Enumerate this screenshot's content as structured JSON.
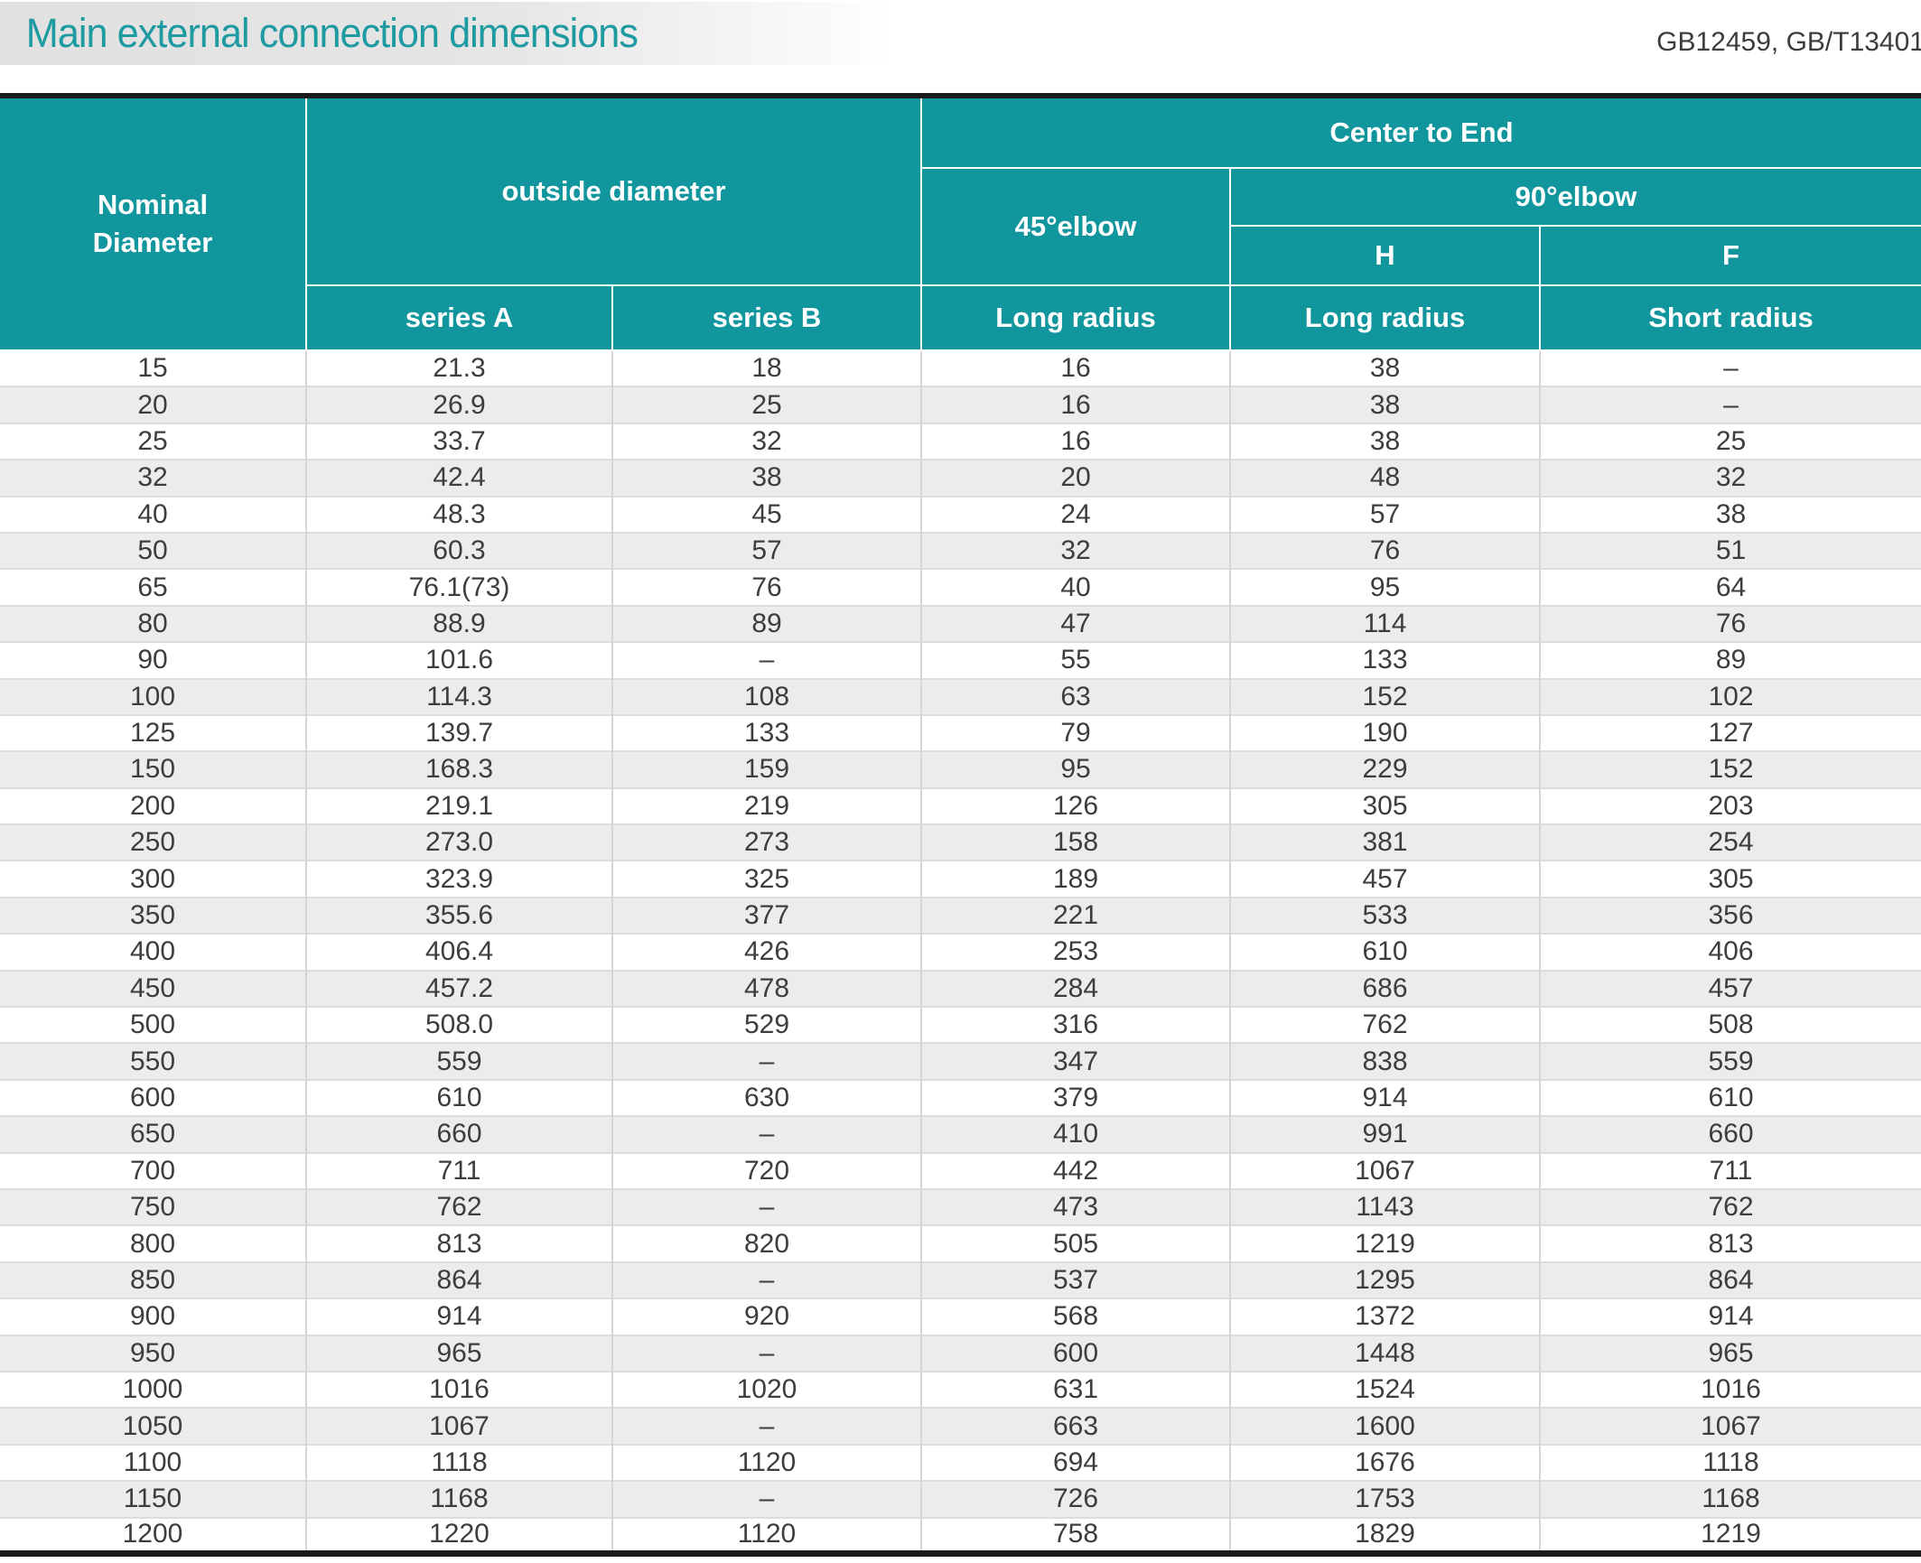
{
  "header": {
    "title": "Main external connection dimensions",
    "standards": "GB12459, GB/T13401"
  },
  "colors": {
    "accent_teal": "#12969e",
    "title_teal": "#1e9aa1",
    "stripe_gray": "#ececec",
    "border_dark": "#1b1b1b"
  },
  "table": {
    "header": {
      "nominal_diameter": "Nominal\nDiameter",
      "outside_diameter": "outside diameter",
      "center_to_end": "Center to End",
      "elbow_45": "45°elbow",
      "elbow_90": "90°elbow",
      "h": "H",
      "f": "F",
      "series_a": "series A",
      "series_b": "series B",
      "radius_45_long": "Long radius",
      "radius_h_long": "Long radius",
      "radius_f_short": "Short radius"
    },
    "rows": [
      [
        "15",
        "21.3",
        "18",
        "16",
        "38",
        "–"
      ],
      [
        "20",
        "26.9",
        "25",
        "16",
        "38",
        "–"
      ],
      [
        "25",
        "33.7",
        "32",
        "16",
        "38",
        "25"
      ],
      [
        "32",
        "42.4",
        "38",
        "20",
        "48",
        "32"
      ],
      [
        "40",
        "48.3",
        "45",
        "24",
        "57",
        "38"
      ],
      [
        "50",
        "60.3",
        "57",
        "32",
        "76",
        "51"
      ],
      [
        "65",
        "76.1(73)",
        "76",
        "40",
        "95",
        "64"
      ],
      [
        "80",
        "88.9",
        "89",
        "47",
        "114",
        "76"
      ],
      [
        "90",
        "101.6",
        "–",
        "55",
        "133",
        "89"
      ],
      [
        "100",
        "114.3",
        "108",
        "63",
        "152",
        "102"
      ],
      [
        "125",
        "139.7",
        "133",
        "79",
        "190",
        "127"
      ],
      [
        "150",
        "168.3",
        "159",
        "95",
        "229",
        "152"
      ],
      [
        "200",
        "219.1",
        "219",
        "126",
        "305",
        "203"
      ],
      [
        "250",
        "273.0",
        "273",
        "158",
        "381",
        "254"
      ],
      [
        "300",
        "323.9",
        "325",
        "189",
        "457",
        "305"
      ],
      [
        "350",
        "355.6",
        "377",
        "221",
        "533",
        "356"
      ],
      [
        "400",
        "406.4",
        "426",
        "253",
        "610",
        "406"
      ],
      [
        "450",
        "457.2",
        "478",
        "284",
        "686",
        "457"
      ],
      [
        "500",
        "508.0",
        "529",
        "316",
        "762",
        "508"
      ],
      [
        "550",
        "559",
        "–",
        "347",
        "838",
        "559"
      ],
      [
        "600",
        "610",
        "630",
        "379",
        "914",
        "610"
      ],
      [
        "650",
        "660",
        "–",
        "410",
        "991",
        "660"
      ],
      [
        "700",
        "711",
        "720",
        "442",
        "1067",
        "711"
      ],
      [
        "750",
        "762",
        "–",
        "473",
        "1143",
        "762"
      ],
      [
        "800",
        "813",
        "820",
        "505",
        "1219",
        "813"
      ],
      [
        "850",
        "864",
        "–",
        "537",
        "1295",
        "864"
      ],
      [
        "900",
        "914",
        "920",
        "568",
        "1372",
        "914"
      ],
      [
        "950",
        "965",
        "–",
        "600",
        "1448",
        "965"
      ],
      [
        "1000",
        "1016",
        "1020",
        "631",
        "1524",
        "1016"
      ],
      [
        "1050",
        "1067",
        "–",
        "663",
        "1600",
        "1067"
      ],
      [
        "1100",
        "1118",
        "1120",
        "694",
        "1676",
        "1118"
      ],
      [
        "1150",
        "1168",
        "–",
        "726",
        "1753",
        "1168"
      ],
      [
        "1200",
        "1220",
        "1120",
        "758",
        "1829",
        "1219"
      ]
    ]
  }
}
